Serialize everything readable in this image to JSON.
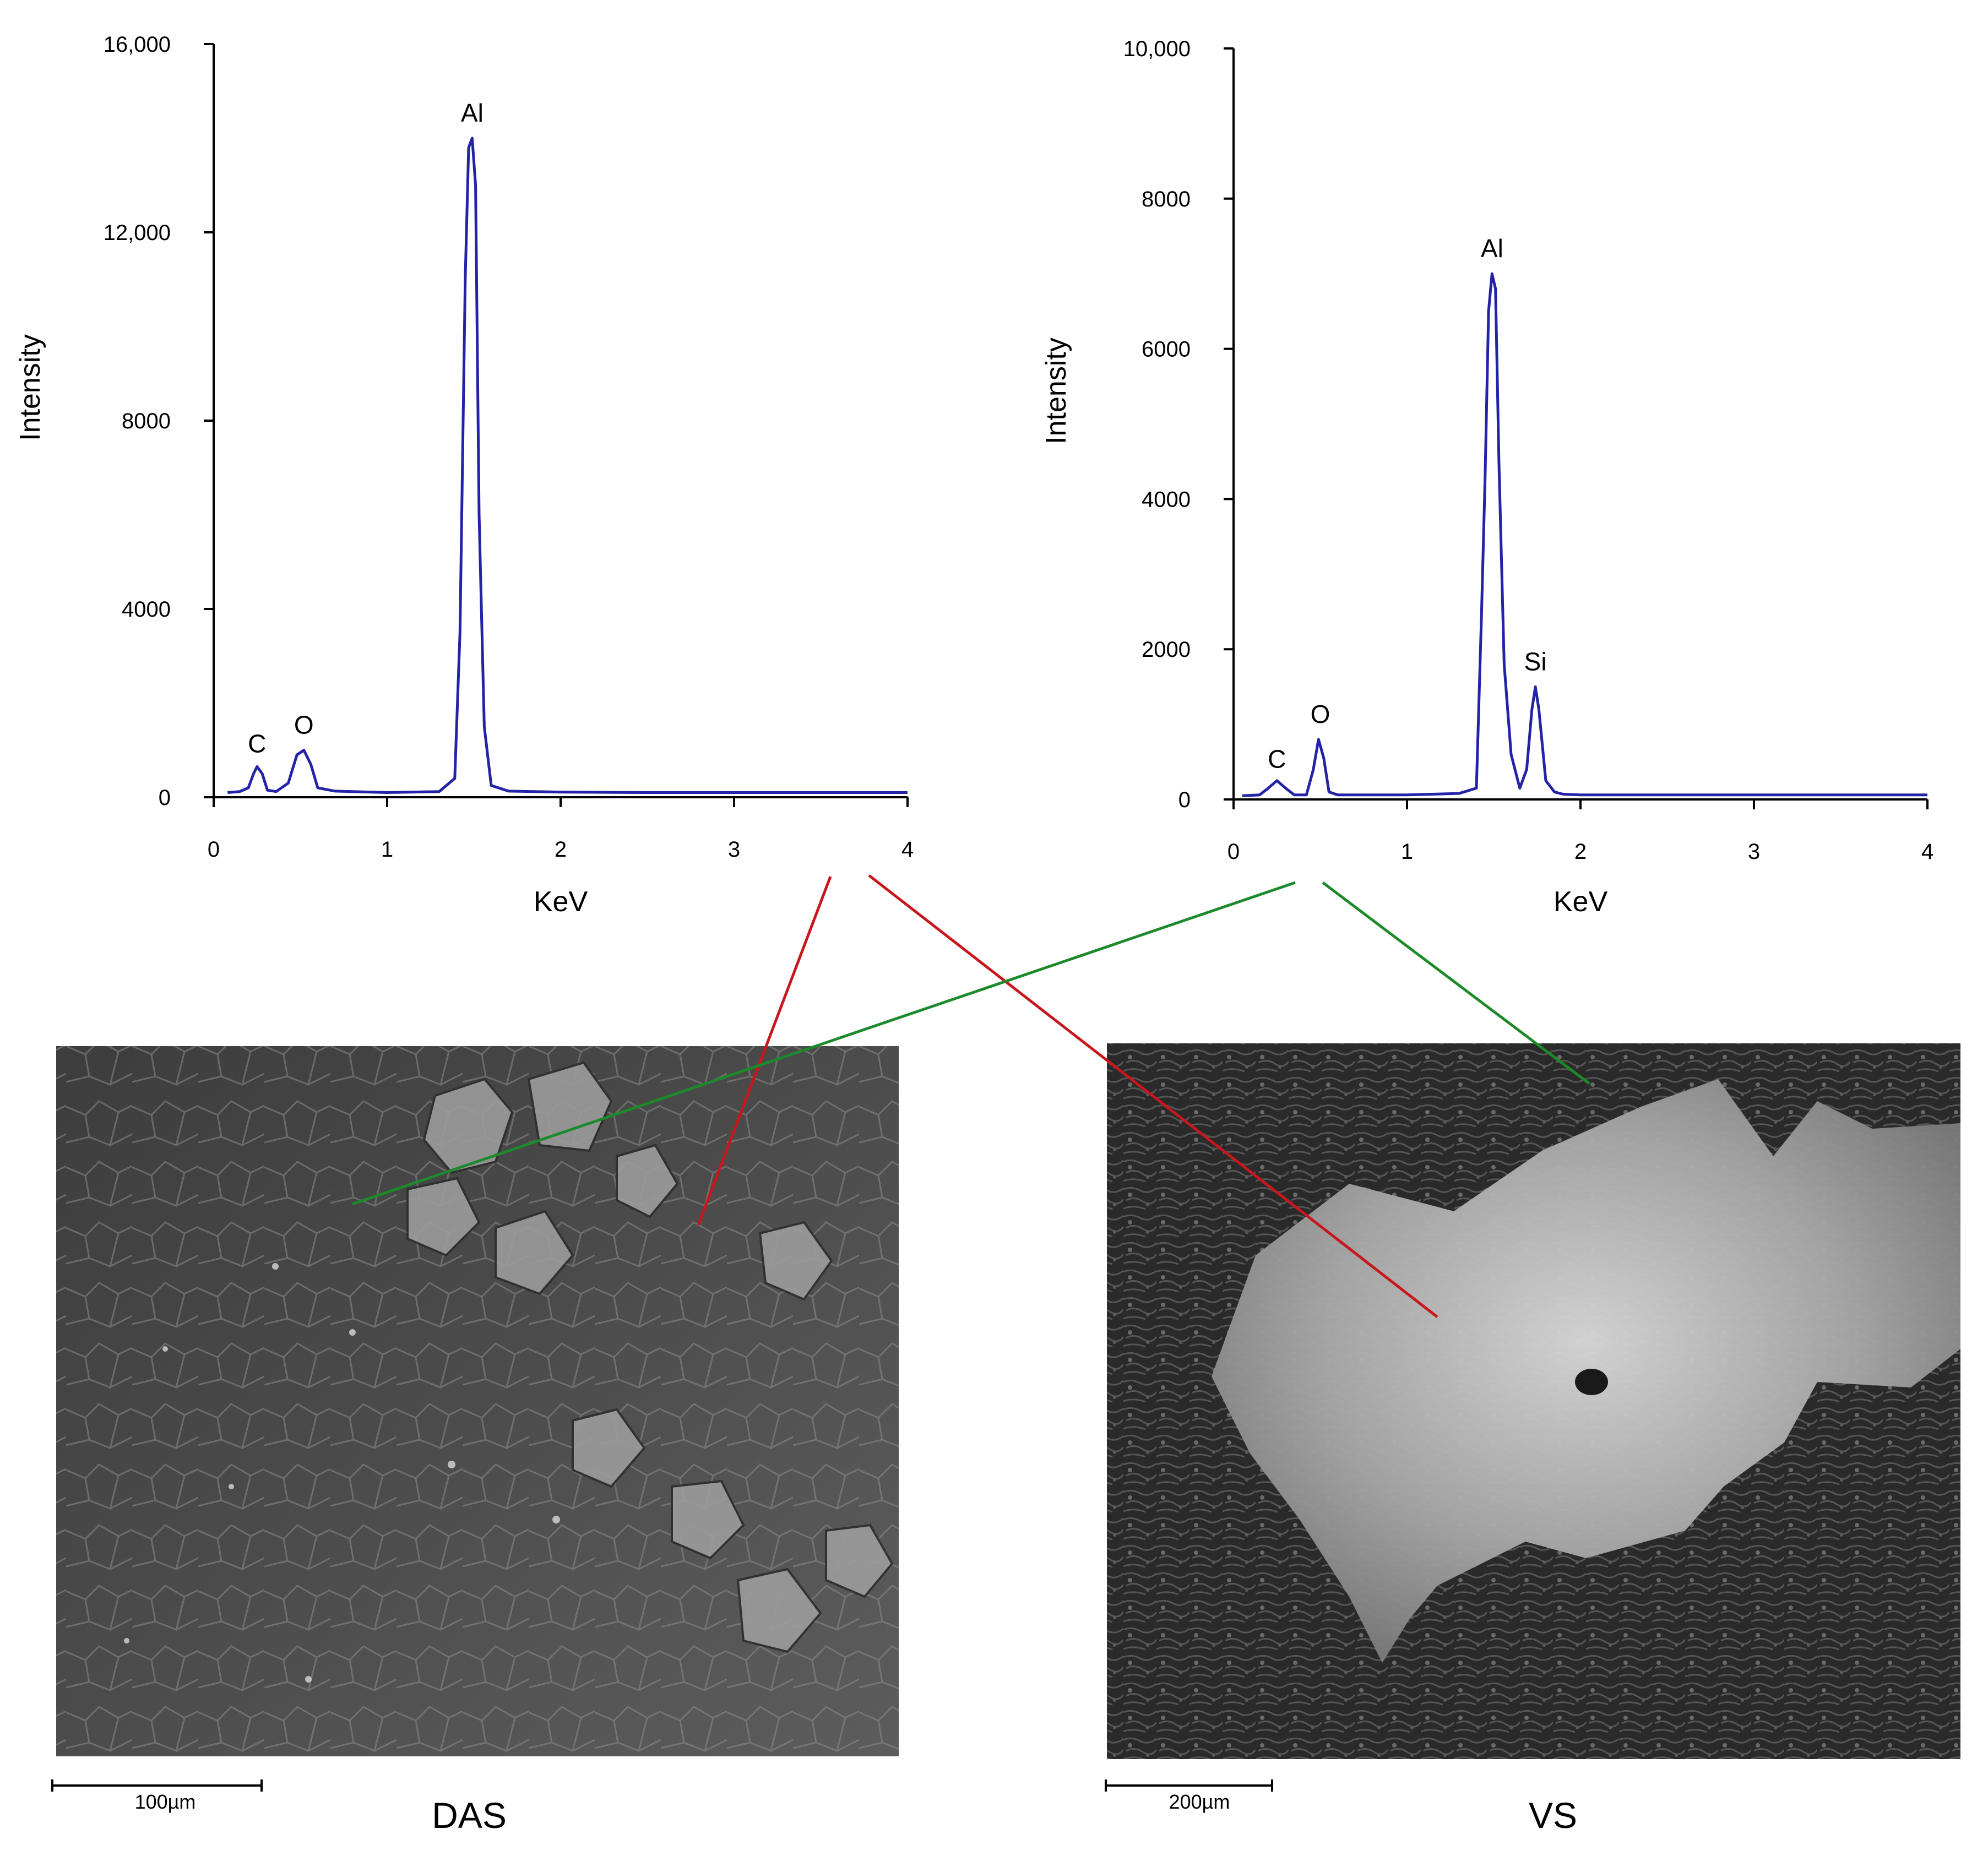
{
  "colors": {
    "spectrum": "#2323a8",
    "axis": "#000000",
    "connector_das": "#c8161d",
    "connector_vs": "#1c8a2a"
  },
  "chart_data": [
    {
      "type": "line",
      "xlabel": "KeV",
      "ylabel": "Intensity",
      "xlim": [
        0,
        4
      ],
      "ylim": [
        0,
        16000
      ],
      "x_ticks": [
        {
          "value": 0,
          "label": "0"
        },
        {
          "value": 1,
          "label": "1"
        },
        {
          "value": 2,
          "label": "2"
        },
        {
          "value": 3,
          "label": "3"
        },
        {
          "value": 4,
          "label": "4"
        }
      ],
      "y_ticks": [
        {
          "value": 0,
          "label": "0"
        },
        {
          "value": 4000,
          "label": "4000"
        },
        {
          "value": 8000,
          "label": "8000"
        },
        {
          "value": 12000,
          "label": "12,000"
        },
        {
          "value": 16000,
          "label": "16,000"
        }
      ],
      "peaks": [
        {
          "label": "C",
          "x": 0.25,
          "y": 600
        },
        {
          "label": "O",
          "x": 0.52,
          "y": 1000
        },
        {
          "label": "Al",
          "x": 1.49,
          "y": 14000
        }
      ],
      "series": [
        {
          "x": [
            0.08,
            0.15,
            0.2,
            0.23,
            0.25,
            0.28,
            0.31,
            0.36,
            0.43,
            0.48,
            0.52,
            0.56,
            0.6,
            0.7,
            1.0,
            1.3,
            1.39,
            1.42,
            1.45,
            1.47,
            1.49,
            1.51,
            1.53,
            1.56,
            1.6,
            1.7,
            2.0,
            2.5,
            3.0,
            3.5,
            4.0
          ],
          "y": [
            100,
            120,
            200,
            500,
            650,
            500,
            150,
            120,
            300,
            900,
            1000,
            700,
            200,
            130,
            100,
            120,
            400,
            3500,
            11000,
            13800,
            14000,
            13000,
            6000,
            1500,
            250,
            130,
            110,
            100,
            100,
            100,
            100
          ]
        }
      ]
    },
    {
      "type": "line",
      "xlabel": "KeV",
      "ylabel": "Intensity",
      "xlim": [
        0,
        4
      ],
      "ylim": [
        0,
        10000
      ],
      "x_ticks": [
        {
          "value": 0,
          "label": "0"
        },
        {
          "value": 1,
          "label": "1"
        },
        {
          "value": 2,
          "label": "2"
        },
        {
          "value": 3,
          "label": "3"
        },
        {
          "value": 4,
          "label": "4"
        }
      ],
      "y_ticks": [
        {
          "value": 0,
          "label": "0"
        },
        {
          "value": 2000,
          "label": "2000"
        },
        {
          "value": 4000,
          "label": "4000"
        },
        {
          "value": 6000,
          "label": "6000"
        },
        {
          "value": 8000,
          "label": "8000"
        },
        {
          "value": 10000,
          "label": "10,000"
        }
      ],
      "peaks": [
        {
          "label": "C",
          "x": 0.25,
          "y": 200
        },
        {
          "label": "O",
          "x": 0.5,
          "y": 800
        },
        {
          "label": "Al",
          "x": 1.49,
          "y": 7000
        },
        {
          "label": "Si",
          "x": 1.74,
          "y": 1500
        }
      ],
      "series": [
        {
          "x": [
            0.05,
            0.15,
            0.2,
            0.25,
            0.3,
            0.35,
            0.42,
            0.46,
            0.49,
            0.52,
            0.55,
            0.6,
            0.7,
            1.0,
            1.3,
            1.4,
            1.43,
            1.45,
            1.47,
            1.49,
            1.51,
            1.53,
            1.56,
            1.6,
            1.65,
            1.69,
            1.72,
            1.74,
            1.76,
            1.8,
            1.85,
            1.9,
            2.0,
            2.5,
            3.0,
            3.5,
            4.0
          ],
          "y": [
            50,
            60,
            150,
            250,
            150,
            60,
            60,
            400,
            800,
            550,
            100,
            60,
            60,
            60,
            80,
            150,
            2500,
            4300,
            6500,
            7000,
            6800,
            4500,
            1800,
            600,
            150,
            400,
            1200,
            1500,
            1200,
            250,
            100,
            70,
            60,
            60,
            60,
            60,
            60
          ]
        }
      ]
    }
  ],
  "images": [
    {
      "label": "DAS",
      "scale_bar": "100µm"
    },
    {
      "label": "VS",
      "scale_bar": "200µm"
    }
  ]
}
